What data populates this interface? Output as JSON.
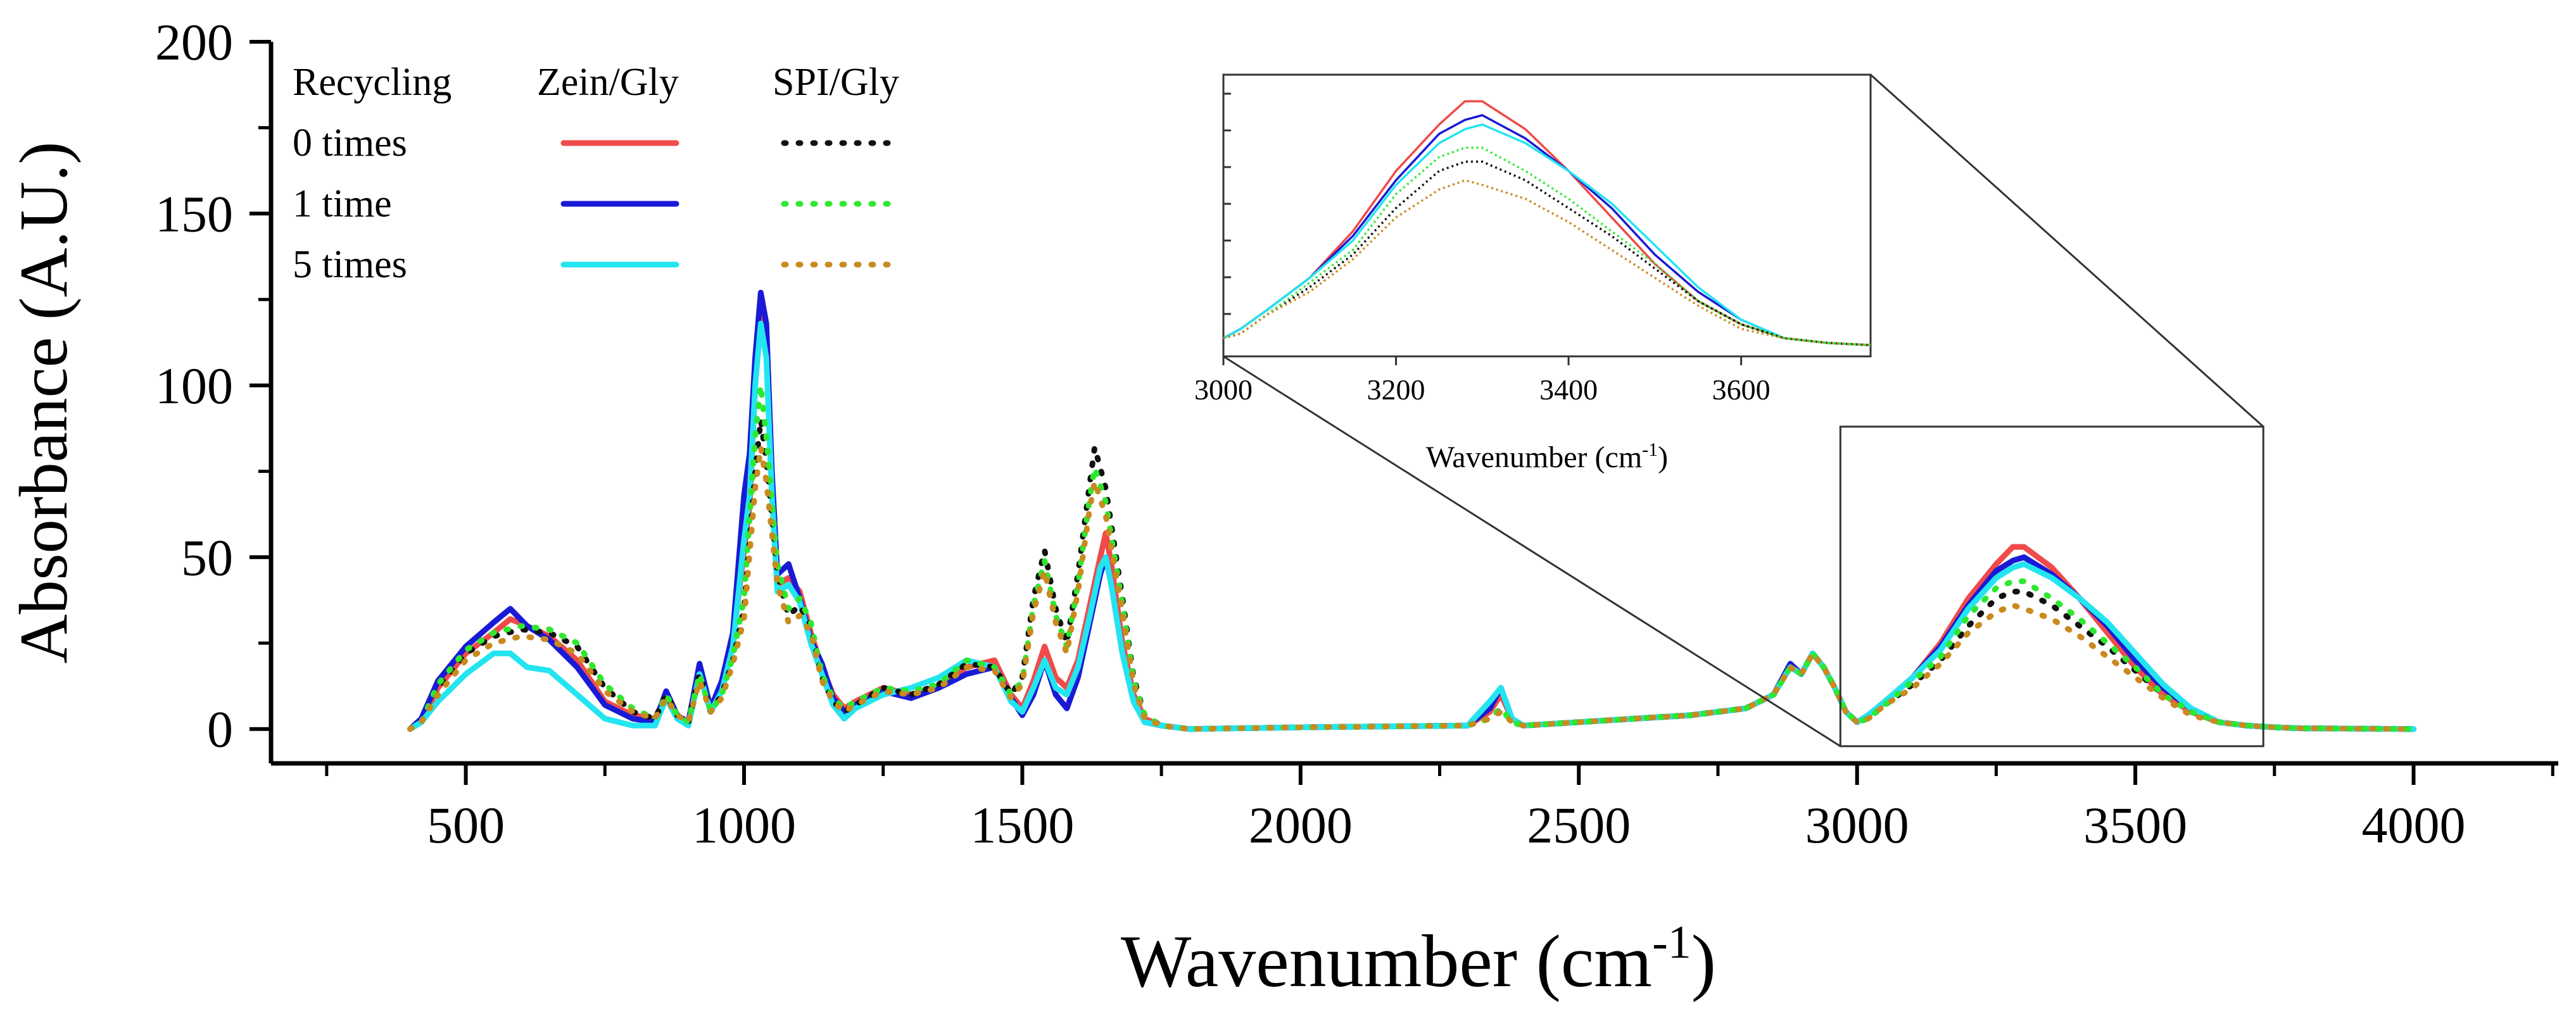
{
  "chart_data": {
    "type": "line",
    "title": "",
    "xlabel": "Wavenumber (cm",
    "xlabel_sup": "-1",
    "xlabel_end": ")",
    "ylabel": "Absorbance (A.U.)",
    "xlim": [
      150,
      4260
    ],
    "ylim": [
      -10,
      200
    ],
    "xticks": [
      500,
      1000,
      1500,
      2000,
      2500,
      3000,
      3500,
      4000
    ],
    "yticks": [
      0,
      50,
      100,
      150,
      200
    ],
    "legend": {
      "header": "Recycling",
      "group_labels": [
        "Zein/Gly",
        "SPI/Gly"
      ],
      "rows": [
        "0 times",
        "1 time",
        "5 times"
      ]
    },
    "series": [
      {
        "name": "Zein/Gly 0 times",
        "color": "#f04a4a",
        "dash": "solid",
        "x": [
          400,
          420,
          450,
          500,
          550,
          580,
          610,
          650,
          700,
          750,
          800,
          840,
          860,
          880,
          900,
          920,
          940,
          960,
          980,
          1000,
          1010,
          1020,
          1030,
          1040,
          1050,
          1060,
          1080,
          1100,
          1120,
          1140,
          1160,
          1180,
          1200,
          1250,
          1300,
          1350,
          1400,
          1450,
          1480,
          1500,
          1520,
          1540,
          1560,
          1580,
          1600,
          1620,
          1640,
          1650,
          1660,
          1680,
          1700,
          1720,
          1750,
          1800,
          2000,
          2300,
          2340,
          2360,
          2380,
          2400,
          2500,
          2600,
          2700,
          2800,
          2850,
          2880,
          2900,
          2920,
          2940,
          2960,
          2980,
          3000,
          3020,
          3050,
          3100,
          3150,
          3200,
          3250,
          3280,
          3300,
          3350,
          3400,
          3450,
          3500,
          3550,
          3600,
          3650,
          3700,
          3750,
          3800,
          4000
        ],
        "y": [
          0,
          2,
          12,
          22,
          28,
          32,
          30,
          27,
          20,
          8,
          4,
          3,
          10,
          4,
          2,
          18,
          6,
          12,
          25,
          52,
          65,
          100,
          122,
          110,
          70,
          42,
          44,
          40,
          28,
          18,
          10,
          6,
          8,
          12,
          10,
          12,
          18,
          20,
          10,
          6,
          14,
          24,
          15,
          12,
          20,
          35,
          50,
          57,
          48,
          25,
          10,
          3,
          1,
          0,
          0.5,
          1,
          5,
          10,
          3,
          1,
          2,
          3,
          4,
          6,
          10,
          18,
          16,
          22,
          18,
          12,
          5,
          2,
          4,
          8,
          15,
          25,
          38,
          48,
          53,
          53,
          47,
          38,
          28,
          18,
          10,
          5,
          2,
          1,
          0.5,
          0.2,
          0
        ]
      },
      {
        "name": "Zein/Gly 1 time",
        "color": "#1a1ad6",
        "dash": "solid",
        "x": [
          400,
          420,
          450,
          500,
          550,
          580,
          610,
          650,
          700,
          750,
          800,
          840,
          860,
          880,
          900,
          920,
          940,
          960,
          980,
          1000,
          1010,
          1020,
          1030,
          1040,
          1050,
          1060,
          1080,
          1100,
          1120,
          1140,
          1160,
          1180,
          1200,
          1250,
          1300,
          1350,
          1400,
          1450,
          1480,
          1500,
          1520,
          1540,
          1560,
          1580,
          1600,
          1620,
          1640,
          1650,
          1660,
          1680,
          1700,
          1720,
          1750,
          1800,
          2000,
          2300,
          2340,
          2360,
          2380,
          2400,
          2500,
          2600,
          2700,
          2800,
          2850,
          2880,
          2900,
          2920,
          2940,
          2960,
          2980,
          3000,
          3020,
          3050,
          3100,
          3150,
          3200,
          3250,
          3280,
          3300,
          3350,
          3400,
          3450,
          3500,
          3550,
          3600,
          3650,
          3700,
          3750,
          3800,
          4000
        ],
        "y": [
          0,
          3,
          14,
          24,
          31,
          35,
          30,
          26,
          18,
          7,
          3,
          2,
          11,
          4,
          2,
          19,
          6,
          14,
          28,
          68,
          80,
          108,
          127,
          118,
          75,
          45,
          48,
          38,
          26,
          19,
          9,
          5,
          7,
          11,
          9,
          12,
          16,
          18,
          9,
          4,
          10,
          20,
          10,
          6,
          15,
          30,
          45,
          50,
          42,
          22,
          8,
          2,
          1,
          0,
          0.5,
          1,
          6,
          12,
          3,
          1,
          2,
          3,
          4,
          6,
          10,
          19,
          16,
          22,
          18,
          12,
          5,
          2,
          4,
          8,
          15,
          24,
          36,
          46,
          49,
          50,
          45,
          38,
          30,
          20,
          12,
          6,
          2,
          1,
          0.5,
          0.2,
          0
        ]
      },
      {
        "name": "Zein/Gly 5 times",
        "color": "#22e5f0",
        "dash": "solid",
        "x": [
          400,
          420,
          450,
          500,
          550,
          580,
          610,
          650,
          700,
          750,
          800,
          840,
          860,
          880,
          900,
          920,
          940,
          960,
          980,
          1000,
          1010,
          1020,
          1030,
          1040,
          1050,
          1060,
          1080,
          1100,
          1120,
          1140,
          1160,
          1180,
          1200,
          1250,
          1300,
          1350,
          1400,
          1450,
          1480,
          1500,
          1520,
          1540,
          1560,
          1580,
          1600,
          1620,
          1640,
          1650,
          1660,
          1680,
          1700,
          1720,
          1750,
          1800,
          2000,
          2300,
          2340,
          2360,
          2380,
          2400,
          2500,
          2600,
          2700,
          2800,
          2850,
          2880,
          2900,
          2920,
          2940,
          2960,
          2980,
          3000,
          3020,
          3050,
          3100,
          3150,
          3200,
          3250,
          3280,
          3300,
          3350,
          3400,
          3450,
          3500,
          3550,
          3600,
          3650,
          3700,
          3750,
          3800,
          4000
        ],
        "y": [
          0,
          2,
          8,
          16,
          22,
          22,
          18,
          17,
          10,
          3,
          1,
          1,
          9,
          3,
          1,
          16,
          5,
          11,
          24,
          55,
          68,
          100,
          118,
          108,
          68,
          40,
          42,
          37,
          25,
          16,
          7,
          3,
          6,
          10,
          12,
          15,
          20,
          18,
          8,
          5,
          12,
          20,
          12,
          10,
          18,
          32,
          47,
          50,
          42,
          22,
          8,
          2,
          1,
          0,
          0.5,
          1,
          8,
          12,
          3,
          1,
          2,
          3,
          4,
          6,
          10,
          18,
          16,
          22,
          18,
          12,
          5,
          2,
          4,
          8,
          15,
          23,
          35,
          44,
          47,
          48,
          44,
          38,
          31,
          22,
          13,
          6,
          2,
          1,
          0.5,
          0.2,
          0
        ]
      },
      {
        "name": "SPI/Gly 0 times",
        "color": "#111111",
        "dash": "dotted",
        "x": [
          400,
          420,
          450,
          500,
          550,
          600,
          650,
          700,
          750,
          800,
          840,
          860,
          880,
          900,
          920,
          940,
          960,
          980,
          1000,
          1020,
          1030,
          1040,
          1060,
          1080,
          1100,
          1120,
          1140,
          1160,
          1180,
          1200,
          1250,
          1300,
          1350,
          1400,
          1450,
          1480,
          1500,
          1520,
          1540,
          1560,
          1580,
          1600,
          1620,
          1630,
          1650,
          1680,
          1700,
          1720,
          1750,
          1800,
          2000,
          2300,
          2340,
          2360,
          2380,
          2400,
          2500,
          2600,
          2700,
          2800,
          2850,
          2880,
          2900,
          2920,
          2940,
          2960,
          2980,
          3000,
          3020,
          3050,
          3100,
          3150,
          3200,
          3250,
          3280,
          3300,
          3350,
          3400,
          3450,
          3500,
          3550,
          3600,
          3650,
          3700,
          3750,
          3800,
          4000
        ],
        "y": [
          0,
          2,
          12,
          22,
          27,
          29,
          28,
          24,
          12,
          5,
          3,
          10,
          4,
          2,
          16,
          5,
          10,
          20,
          35,
          75,
          90,
          78,
          45,
          33,
          36,
          30,
          15,
          8,
          5,
          7,
          12,
          10,
          13,
          19,
          18,
          10,
          15,
          38,
          52,
          35,
          25,
          45,
          70,
          82,
          70,
          38,
          15,
          4,
          1,
          0,
          0.5,
          1,
          3,
          6,
          2,
          1,
          2,
          3,
          4,
          6,
          10,
          18,
          16,
          22,
          18,
          12,
          5,
          2,
          3,
          7,
          13,
          20,
          30,
          38,
          40,
          40,
          36,
          30,
          24,
          17,
          10,
          5,
          2,
          1,
          0.5,
          0.2,
          0
        ]
      },
      {
        "name": "SPI/Gly 1 time",
        "color": "#2ee82e",
        "dash": "dotted",
        "x": [
          400,
          420,
          450,
          500,
          550,
          600,
          650,
          700,
          750,
          800,
          840,
          860,
          880,
          900,
          920,
          940,
          960,
          980,
          1000,
          1020,
          1030,
          1040,
          1060,
          1080,
          1100,
          1120,
          1140,
          1160,
          1180,
          1200,
          1250,
          1300,
          1350,
          1400,
          1450,
          1480,
          1500,
          1520,
          1540,
          1560,
          1580,
          1600,
          1620,
          1630,
          1650,
          1680,
          1700,
          1720,
          1750,
          1800,
          2000,
          2300,
          2340,
          2360,
          2380,
          2400,
          2500,
          2600,
          2700,
          2800,
          2850,
          2880,
          2900,
          2920,
          2940,
          2960,
          2980,
          3000,
          3020,
          3050,
          3100,
          3150,
          3200,
          3250,
          3280,
          3300,
          3350,
          3400,
          3450,
          3500,
          3550,
          3600,
          3650,
          3700,
          3750,
          3800,
          4000
        ],
        "y": [
          0,
          2,
          13,
          23,
          28,
          30,
          29,
          25,
          13,
          6,
          3,
          10,
          4,
          2,
          16,
          5,
          10,
          21,
          38,
          85,
          100,
          85,
          48,
          35,
          38,
          31,
          16,
          9,
          6,
          8,
          12,
          11,
          13,
          20,
          18,
          10,
          14,
          36,
          49,
          33,
          24,
          42,
          66,
          76,
          66,
          36,
          14,
          4,
          1,
          0,
          0.5,
          1,
          3,
          6,
          2,
          1,
          2,
          3,
          4,
          6,
          10,
          18,
          16,
          22,
          18,
          12,
          5,
          2,
          3,
          7,
          14,
          21,
          33,
          41,
          43,
          43,
          38,
          32,
          25,
          18,
          10,
          5,
          2,
          1,
          0.5,
          0.2,
          0
        ]
      },
      {
        "name": "SPI/Gly 5 times",
        "color": "#c98a1e",
        "dash": "dotted",
        "x": [
          400,
          420,
          450,
          500,
          550,
          600,
          650,
          700,
          750,
          800,
          840,
          860,
          880,
          900,
          920,
          940,
          960,
          980,
          1000,
          1020,
          1030,
          1040,
          1060,
          1080,
          1100,
          1120,
          1140,
          1160,
          1180,
          1200,
          1250,
          1300,
          1350,
          1400,
          1450,
          1480,
          1500,
          1520,
          1540,
          1560,
          1580,
          1600,
          1620,
          1630,
          1650,
          1680,
          1700,
          1720,
          1750,
          1800,
          2000,
          2300,
          2340,
          2360,
          2380,
          2400,
          2500,
          2600,
          2700,
          2800,
          2850,
          2880,
          2900,
          2920,
          2940,
          2960,
          2980,
          3000,
          3020,
          3050,
          3100,
          3150,
          3200,
          3250,
          3280,
          3300,
          3350,
          3400,
          3450,
          3500,
          3550,
          3600,
          3650,
          3700,
          3750,
          3800,
          4000
        ],
        "y": [
          0,
          2,
          10,
          20,
          25,
          27,
          26,
          22,
          11,
          5,
          3,
          9,
          4,
          2,
          14,
          5,
          9,
          19,
          32,
          70,
          82,
          72,
          42,
          31,
          33,
          28,
          14,
          8,
          5,
          7,
          11,
          10,
          12,
          18,
          17,
          9,
          13,
          34,
          46,
          31,
          22,
          40,
          63,
          72,
          62,
          34,
          13,
          3,
          1,
          0,
          0.5,
          1,
          3,
          5,
          2,
          1,
          2,
          3,
          4,
          6,
          10,
          18,
          16,
          22,
          18,
          12,
          5,
          2,
          3,
          7,
          12,
          19,
          28,
          34,
          36,
          35,
          32,
          27,
          21,
          15,
          9,
          4,
          2,
          1,
          0.5,
          0.2,
          0
        ]
      }
    ],
    "inset": {
      "xlim": [
        3000,
        3750
      ],
      "ylim": [
        0,
        56
      ],
      "xticks": [
        3000,
        3200,
        3400,
        3600
      ],
      "xlabel": "Wavenumber (cm",
      "xlabel_sup": "-1",
      "xlabel_end": ")",
      "zoom_region": {
        "x": [
          2970,
          3730
        ],
        "y": [
          -5,
          88
        ]
      }
    }
  }
}
